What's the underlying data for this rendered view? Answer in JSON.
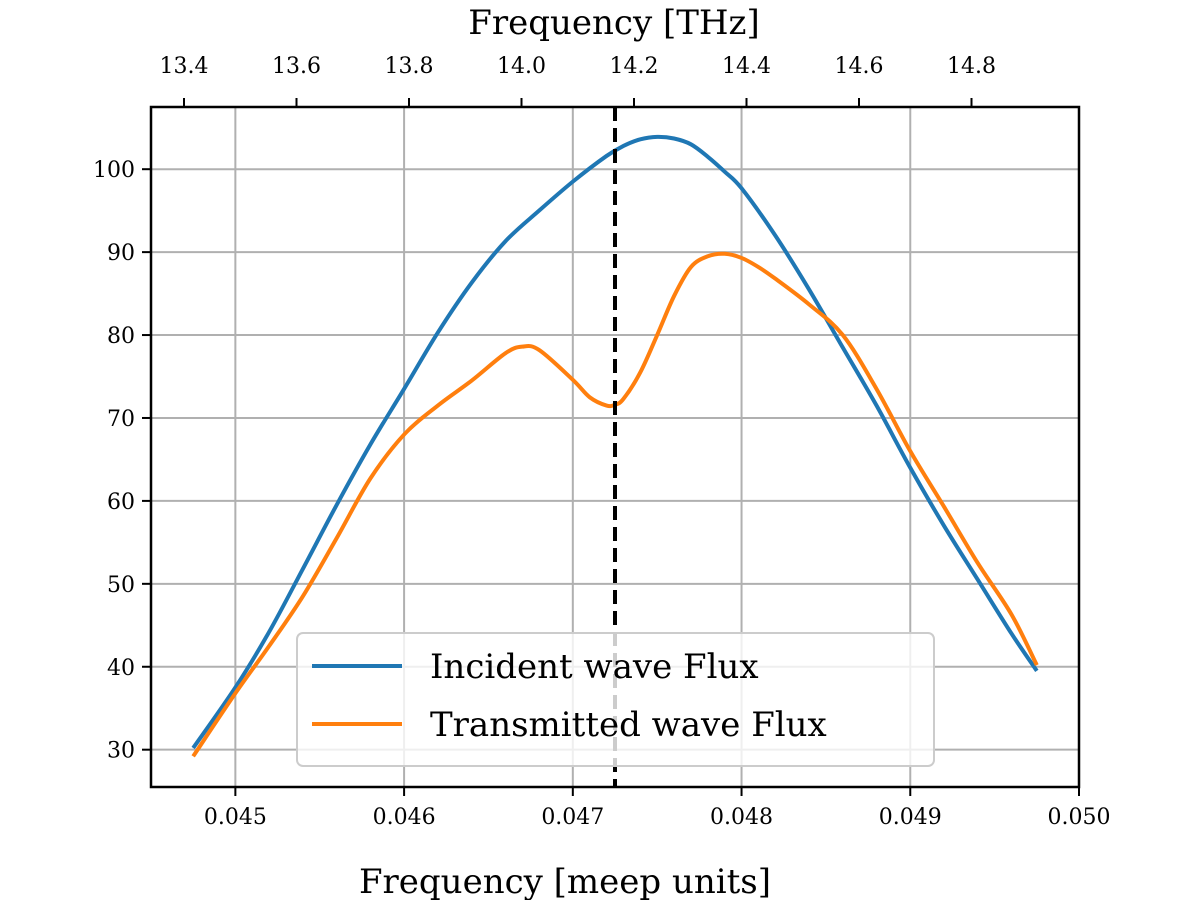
{
  "chart_data": {
    "type": "line",
    "xlabel": "Frequency [meep units]",
    "x2label": "Frequency [THz]",
    "xlim": [
      0.0445,
      0.05
    ],
    "ylim": [
      25.5,
      107.5
    ],
    "x_ticks": [
      0.045,
      0.046,
      0.047,
      0.048,
      0.049,
      0.05
    ],
    "x_tick_labels": [
      "0.045",
      "0.046",
      "0.047",
      "0.048",
      "0.049",
      "0.050"
    ],
    "x2_ticks": [
      13.4,
      13.6,
      13.8,
      14.0,
      14.2,
      14.4,
      14.6,
      14.8
    ],
    "x2_tick_labels": [
      "13.4",
      "13.6",
      "13.8",
      "14.0",
      "14.2",
      "14.4",
      "14.6",
      "14.8"
    ],
    "y_ticks": [
      30,
      40,
      50,
      60,
      70,
      80,
      90,
      100
    ],
    "y_tick_labels": [
      "30",
      "40",
      "50",
      "60",
      "70",
      "80",
      "90",
      "100"
    ],
    "grid": true,
    "legend_position": "lower-center",
    "vline": {
      "x": 0.04725,
      "style": "dashed",
      "color": "#000000"
    },
    "series": [
      {
        "name": "Incident wave Flux",
        "color": "#1f77b4",
        "x": [
          0.04475,
          0.045,
          0.0452,
          0.0454,
          0.0456,
          0.0458,
          0.046,
          0.0462,
          0.0464,
          0.0466,
          0.0468,
          0.047,
          0.0472,
          0.0473,
          0.0474,
          0.0475,
          0.0476,
          0.0477,
          0.0478,
          0.0479,
          0.048,
          0.0482,
          0.0484,
          0.0486,
          0.0488,
          0.049,
          0.0492,
          0.0494,
          0.0496,
          0.04975
        ],
        "values": [
          30.2,
          37.5,
          44.2,
          51.8,
          59.5,
          66.8,
          73.5,
          80.3,
          86.3,
          91.3,
          95.0,
          98.5,
          101.6,
          102.8,
          103.6,
          103.9,
          103.7,
          103.0,
          101.5,
          99.7,
          97.7,
          92.0,
          85.5,
          78.5,
          71.5,
          64.0,
          57.0,
          50.5,
          44.0,
          39.5
        ]
      },
      {
        "name": "Transmitted wave Flux",
        "color": "#ff7f0e",
        "x": [
          0.04475,
          0.045,
          0.0452,
          0.0454,
          0.0456,
          0.0458,
          0.046,
          0.0462,
          0.0464,
          0.0466,
          0.0467,
          0.0468,
          0.047,
          0.0471,
          0.0472,
          0.04725,
          0.0473,
          0.0474,
          0.0475,
          0.0476,
          0.0477,
          0.0478,
          0.0479,
          0.048,
          0.0481,
          0.0482,
          0.0484,
          0.0486,
          0.0488,
          0.049,
          0.0492,
          0.0494,
          0.0496,
          0.04975
        ],
        "values": [
          29.2,
          36.8,
          42.5,
          48.5,
          55.5,
          62.7,
          68.0,
          71.5,
          74.5,
          77.8,
          78.6,
          78.2,
          74.6,
          72.5,
          71.5,
          71.6,
          72.3,
          75.5,
          80.0,
          84.7,
          88.2,
          89.5,
          89.8,
          89.3,
          88.2,
          86.8,
          83.7,
          80.0,
          73.5,
          66.0,
          59.3,
          52.5,
          46.3,
          40.2
        ]
      }
    ]
  }
}
